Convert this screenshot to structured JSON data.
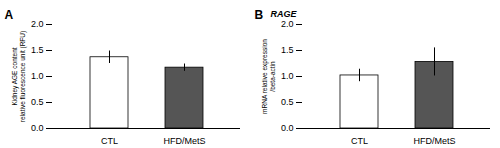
{
  "chart_data": [
    {
      "type": "bar",
      "title": "A",
      "categories": [
        "CTL",
        "HFD/MetS"
      ],
      "values": [
        1.37,
        1.17
      ],
      "errors": [
        0.12,
        0.07
      ],
      "colors": [
        "#ffffff",
        "#555555"
      ],
      "ylabel": "Kidney AGE content\nrelative fluorescence unit (RFU)",
      "ylim": [
        0,
        2.0
      ],
      "yticks": [
        {
          "value": 0,
          "label": "0.0"
        },
        0.5,
        {
          "value": 1,
          "label": "1.0"
        },
        1.5,
        {
          "value": 2,
          "label": "2.0"
        }
      ]
    },
    {
      "type": "bar",
      "title": "B",
      "annotation": "RAGE",
      "categories": [
        "CTL",
        "HFD/MetS"
      ],
      "values": [
        1.02,
        1.28
      ],
      "errors": [
        0.12,
        0.27
      ],
      "colors": [
        "#ffffff",
        "#555555"
      ],
      "ylabel": "mRNA relative expression\n/beta-actin",
      "ylim": [
        0,
        2.0
      ],
      "yticks": [
        {
          "value": 0,
          "label": "0.0"
        },
        0.5,
        {
          "value": 1,
          "label": "1.0"
        },
        1.5,
        {
          "value": 2,
          "label": "2.0"
        }
      ]
    }
  ]
}
